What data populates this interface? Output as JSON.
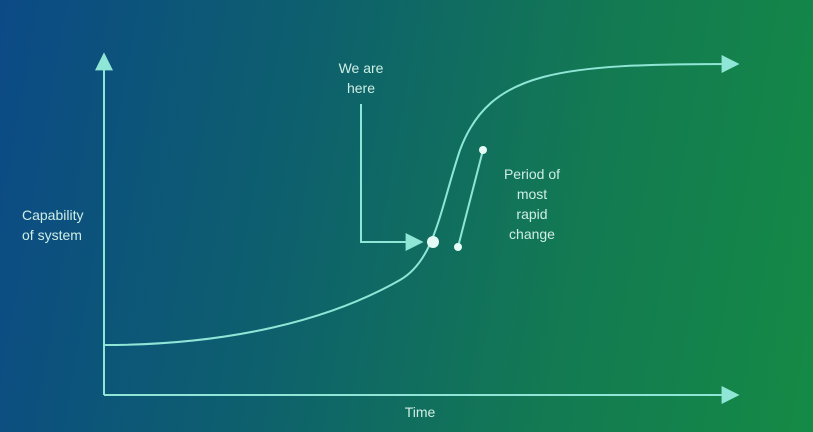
{
  "diagram": {
    "y_axis_label": "Capability\nof system",
    "x_axis_label": "Time",
    "marker_label": "We are\nhere",
    "change_label": "Period of\nmost\nrapid\nchange",
    "line_color": "#8fe6d6",
    "curve_shape": "s-curve"
  }
}
